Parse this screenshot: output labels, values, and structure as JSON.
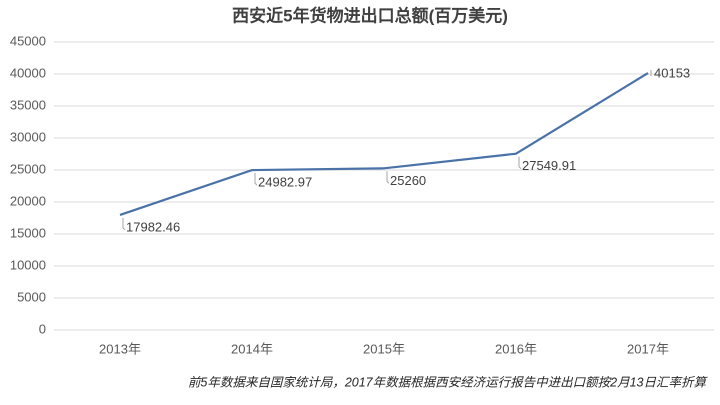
{
  "chart_data": {
    "type": "line",
    "title": "西安近5年货物进出口总额(百万美元)",
    "categories": [
      "2013年",
      "2014年",
      "2015年",
      "2016年",
      "2017年"
    ],
    "series": [
      {
        "name": "货物进出口总额",
        "color": "#4a72a8",
        "values": [
          17982.46,
          24982.97,
          25260,
          27549.91,
          40153
        ]
      }
    ],
    "ylim": [
      0,
      45000
    ],
    "yticks": [
      0,
      5000,
      10000,
      15000,
      20000,
      25000,
      30000,
      35000,
      40000,
      45000
    ],
    "grid": true,
    "data_labels": true,
    "footnote": "前5年数据来自国家统计局，2017年数据根据西安经济运行报告中进出口额按2月13日汇率折算"
  }
}
